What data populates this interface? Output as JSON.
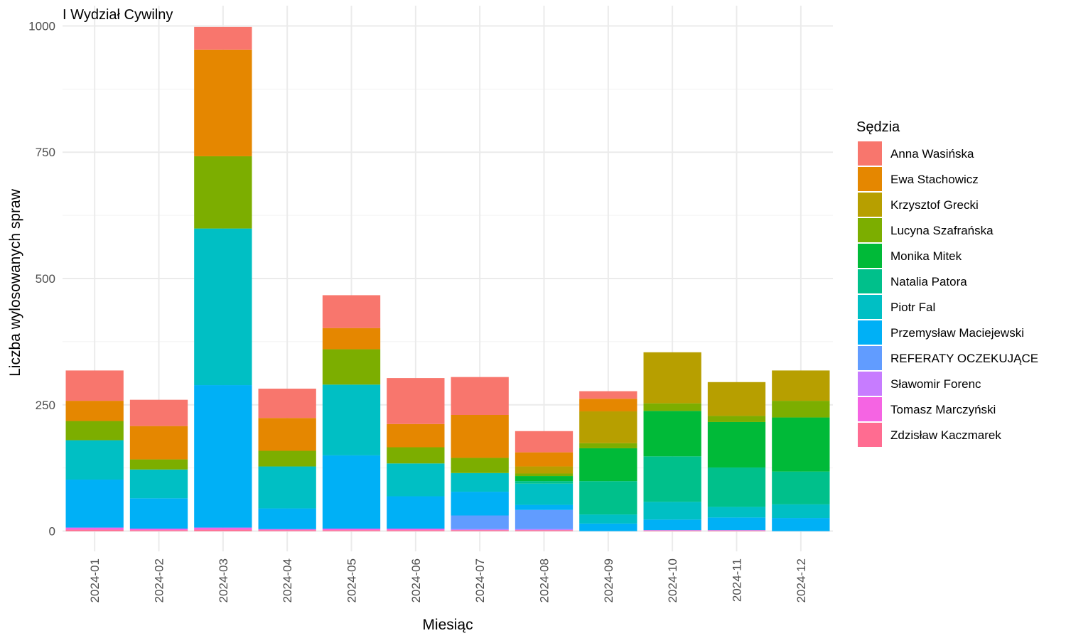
{
  "chart_data": {
    "type": "bar",
    "stacked": true,
    "title": "I Wydział Cywilny",
    "xlabel": "Miesiąc",
    "ylabel": "Liczba wylosowanych spraw",
    "ylim": [
      -40,
      1000
    ],
    "yticks": [
      0,
      250,
      500,
      750,
      1000
    ],
    "grid": true,
    "legend_position": "right",
    "legend_title": "Sędzia",
    "categories": [
      "2024-01",
      "2024-02",
      "2024-03",
      "2024-04",
      "2024-05",
      "2024-06",
      "2024-07",
      "2024-08",
      "2024-09",
      "2024-10",
      "2024-11",
      "2024-12"
    ],
    "series": [
      {
        "name": "Zdzisław Kaczmarek",
        "color": "#FF6C91",
        "values": [
          3,
          2,
          3,
          2,
          2,
          2,
          2,
          2,
          0,
          1,
          1,
          0
        ]
      },
      {
        "name": "Tomasz Marczyński",
        "color": "#F564E3",
        "values": [
          4,
          3,
          4,
          2,
          3,
          3,
          0,
          0,
          0,
          1,
          1,
          0
        ]
      },
      {
        "name": "Sławomir Forenc",
        "color": "#C77CFF",
        "values": [
          0,
          0,
          0,
          0,
          0,
          0,
          2,
          2,
          0,
          0,
          0,
          0
        ]
      },
      {
        "name": "REFERATY OCZEKUJĄCE",
        "color": "#619CFF",
        "values": [
          0,
          0,
          0,
          0,
          0,
          0,
          27,
          38,
          0,
          0,
          0,
          0
        ]
      },
      {
        "name": "Przemysław Maciejewski",
        "color": "#00B0F6",
        "values": [
          95,
          60,
          282,
          41,
          145,
          64,
          47,
          10,
          15,
          21,
          25,
          26
        ]
      },
      {
        "name": "Piotr Fal",
        "color": "#00BFC4",
        "values": [
          78,
          57,
          310,
          83,
          140,
          65,
          37,
          42,
          18,
          35,
          21,
          27
        ]
      },
      {
        "name": "Natalia Patora",
        "color": "#00C08B",
        "values": [
          0,
          0,
          0,
          0,
          0,
          0,
          0,
          5,
          66,
          90,
          78,
          65
        ]
      },
      {
        "name": "Monika Mitek",
        "color": "#00BA38",
        "values": [
          0,
          0,
          0,
          0,
          0,
          0,
          0,
          10,
          65,
          90,
          90,
          107
        ]
      },
      {
        "name": "Lucyna Szafrańska",
        "color": "#7CAE00",
        "values": [
          38,
          20,
          143,
          31,
          70,
          32,
          30,
          5,
          10,
          15,
          12,
          33
        ]
      },
      {
        "name": "Krzysztof Grecki",
        "color": "#B79F00",
        "values": [
          0,
          0,
          0,
          0,
          0,
          0,
          0,
          14,
          63,
          101,
          67,
          60
        ]
      },
      {
        "name": "Ewa Stachowicz",
        "color": "#E58700",
        "values": [
          40,
          66,
          211,
          65,
          42,
          46,
          85,
          28,
          25,
          0,
          0,
          0
        ]
      },
      {
        "name": "Anna Wasińska",
        "color": "#F8766D",
        "values": [
          60,
          52,
          45,
          58,
          65,
          91,
          75,
          42,
          15,
          0,
          0,
          0
        ]
      }
    ],
    "legend_order": [
      "Anna Wasińska",
      "Ewa Stachowicz",
      "Krzysztof Grecki",
      "Lucyna Szafrańska",
      "Monika Mitek",
      "Natalia Patora",
      "Piotr Fal",
      "Przemysław Maciejewski",
      "REFERATY OCZEKUJĄCE",
      "Sławomir Forenc",
      "Tomasz Marczyński",
      "Zdzisław Kaczmarek"
    ]
  }
}
